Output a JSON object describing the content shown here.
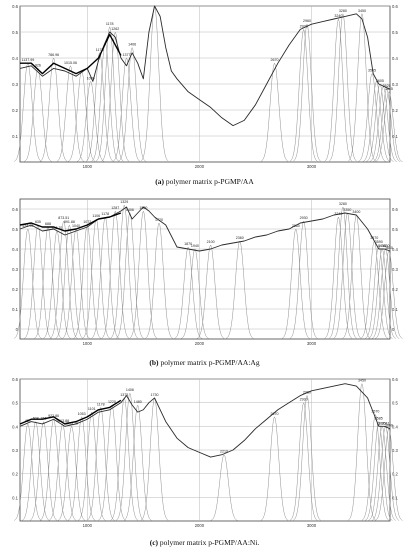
{
  "chart_data": [
    {
      "type": "line",
      "caption_label": "(a)",
      "caption_text": "polymer matrix p-PGMP/AA",
      "xlabel": "",
      "ylabel": "",
      "xlim": [
        400,
        3700
      ],
      "ylim": [
        0,
        0.6
      ],
      "x_ticks": [
        "1000",
        "2000",
        "3000"
      ],
      "y_ticks": [
        "0.1",
        "0.2",
        "0.3",
        "0.4",
        "0.5",
        "0.6"
      ],
      "y_right_ticks": [
        "0.6",
        "0.5",
        "0.4",
        "0.3",
        "0.2",
        "0.1"
      ],
      "grid": true,
      "colors": {
        "spectrum": "#2a2a2a",
        "fit": "#000000",
        "components": "#909090",
        "grid": "#b8b8b8"
      },
      "series": [
        {
          "kind": "spectrum",
          "x": [
            400,
            500,
            600,
            700,
            800,
            900,
            1000,
            1050,
            1100,
            1150,
            1200,
            1250,
            1300,
            1350,
            1400,
            1450,
            1500,
            1550,
            1600,
            1650,
            1700,
            1750,
            1800,
            1900,
            2000,
            2100,
            2200,
            2300,
            2400,
            2500,
            2600,
            2700,
            2800,
            2900,
            3000,
            3100,
            3200,
            3300,
            3400,
            3450,
            3500,
            3550,
            3600,
            3650,
            3700
          ],
          "y": [
            0.36,
            0.37,
            0.33,
            0.36,
            0.35,
            0.33,
            0.36,
            0.31,
            0.39,
            0.45,
            0.5,
            0.48,
            0.4,
            0.37,
            0.42,
            0.38,
            0.32,
            0.5,
            0.6,
            0.56,
            0.44,
            0.35,
            0.32,
            0.27,
            0.24,
            0.21,
            0.17,
            0.14,
            0.16,
            0.22,
            0.3,
            0.38,
            0.45,
            0.51,
            0.53,
            0.54,
            0.55,
            0.56,
            0.57,
            0.55,
            0.48,
            0.34,
            0.3,
            0.29,
            0.28
          ]
        },
        {
          "kind": "fit",
          "x": [
            400,
            500,
            600,
            700,
            800,
            900,
            1000,
            1100,
            1200,
            1300
          ],
          "y": [
            0.38,
            0.38,
            0.34,
            0.38,
            0.36,
            0.34,
            0.36,
            0.4,
            0.49,
            0.41
          ]
        }
      ],
      "peaks": [
        {
          "x": 470,
          "h": 0.38,
          "label": "1137.99"
        },
        {
          "x": 560,
          "h": 0.36,
          "label": "926"
        },
        {
          "x": 700,
          "h": 0.4,
          "label": "786.96"
        },
        {
          "x": 850,
          "h": 0.37,
          "label": "1015.06"
        },
        {
          "x": 950,
          "h": 0.35,
          "label": ""
        },
        {
          "x": 1030,
          "h": 0.31,
          "label": "1099"
        },
        {
          "x": 1110,
          "h": 0.42,
          "label": "1173"
        },
        {
          "x": 1160,
          "h": 0.46,
          "label": ""
        },
        {
          "x": 1200,
          "h": 0.52,
          "label": "1178"
        },
        {
          "x": 1250,
          "h": 0.5,
          "label": "1262"
        },
        {
          "x": 1350,
          "h": 0.4,
          "label": "1377"
        },
        {
          "x": 1400,
          "h": 0.44,
          "label": "1406"
        },
        {
          "x": 1600,
          "h": 0.6,
          "label": ""
        },
        {
          "x": 2670,
          "h": 0.38,
          "label": "2670"
        },
        {
          "x": 2930,
          "h": 0.51,
          "label": "2930"
        },
        {
          "x": 2960,
          "h": 0.53,
          "label": "2960"
        },
        {
          "x": 3240,
          "h": 0.55,
          "label": "3240"
        },
        {
          "x": 3280,
          "h": 0.57,
          "label": "3280"
        },
        {
          "x": 3450,
          "h": 0.57,
          "label": "3450"
        },
        {
          "x": 3540,
          "h": 0.34,
          "label": "3565"
        },
        {
          "x": 3580,
          "h": 0.31,
          "label": ""
        },
        {
          "x": 3610,
          "h": 0.3,
          "label": "3605"
        },
        {
          "x": 3640,
          "h": 0.29,
          "label": ""
        },
        {
          "x": 3670,
          "h": 0.28,
          "label": "3625"
        },
        {
          "x": 3690,
          "h": 0.27,
          "label": "3645"
        }
      ]
    },
    {
      "type": "line",
      "caption_label": "(b)",
      "caption_text": "polymer matrix p-PGMP/AA:Ag",
      "xlabel": "",
      "ylabel": "",
      "xlim": [
        400,
        3700
      ],
      "ylim": [
        -0.05,
        0.65
      ],
      "x_ticks": [
        "1000",
        "2000",
        "3000"
      ],
      "y_ticks": [
        "0",
        "0.1",
        "0.2",
        "0.3",
        "0.4",
        "0.5",
        "0.6"
      ],
      "y_right_ticks": [
        "0.6",
        "0.5",
        "0.4",
        "0.3",
        "0.2",
        "0.1",
        "0"
      ],
      "grid": true,
      "colors": {
        "spectrum": "#2a2a2a",
        "fit": "#000000",
        "components": "#909090",
        "grid": "#b8b8b8"
      },
      "series": [
        {
          "kind": "spectrum",
          "x": [
            400,
            500,
            600,
            700,
            800,
            900,
            1000,
            1100,
            1200,
            1300,
            1350,
            1400,
            1450,
            1500,
            1550,
            1600,
            1700,
            1800,
            1900,
            2000,
            2100,
            2200,
            2300,
            2400,
            2500,
            2600,
            2700,
            2800,
            2900,
            3000,
            3100,
            3200,
            3300,
            3400,
            3500,
            3550,
            3600,
            3650,
            3700
          ],
          "y": [
            0.5,
            0.52,
            0.49,
            0.5,
            0.47,
            0.49,
            0.51,
            0.55,
            0.56,
            0.59,
            0.61,
            0.55,
            0.58,
            0.61,
            0.59,
            0.56,
            0.52,
            0.41,
            0.4,
            0.39,
            0.4,
            0.42,
            0.43,
            0.44,
            0.46,
            0.47,
            0.49,
            0.5,
            0.53,
            0.54,
            0.55,
            0.57,
            0.58,
            0.57,
            0.5,
            0.45,
            0.4,
            0.4,
            0.39
          ]
        },
        {
          "kind": "fit",
          "x": [
            400,
            500,
            600,
            700,
            800,
            900,
            1000,
            1100,
            1200,
            1300
          ],
          "y": [
            0.52,
            0.53,
            0.51,
            0.51,
            0.49,
            0.5,
            0.52,
            0.55,
            0.56,
            0.58
          ]
        }
      ],
      "peaks": [
        {
          "x": 470,
          "h": 0.5,
          "label": "534.90"
        },
        {
          "x": 560,
          "h": 0.52,
          "label": "635"
        },
        {
          "x": 650,
          "h": 0.51,
          "label": "688"
        },
        {
          "x": 730,
          "h": 0.49,
          "label": "786.76"
        },
        {
          "x": 790,
          "h": 0.54,
          "label": "873.51"
        },
        {
          "x": 840,
          "h": 0.52,
          "label": "891.88"
        },
        {
          "x": 900,
          "h": 0.5,
          "label": "1040"
        },
        {
          "x": 1000,
          "h": 0.52,
          "label": "1072"
        },
        {
          "x": 1080,
          "h": 0.55,
          "label": "1106"
        },
        {
          "x": 1160,
          "h": 0.56,
          "label": "1178"
        },
        {
          "x": 1250,
          "h": 0.59,
          "label": "1287"
        },
        {
          "x": 1330,
          "h": 0.62,
          "label": "1329"
        },
        {
          "x": 1380,
          "h": 0.58,
          "label": "1406"
        },
        {
          "x": 1500,
          "h": 0.59,
          "label": "1500"
        },
        {
          "x": 1640,
          "h": 0.53,
          "label": "1720"
        },
        {
          "x": 1900,
          "h": 0.41,
          "label": "1870"
        },
        {
          "x": 1960,
          "h": 0.4,
          "label": "1940"
        },
        {
          "x": 2100,
          "h": 0.42,
          "label": "2100"
        },
        {
          "x": 2360,
          "h": 0.44,
          "label": "2360"
        },
        {
          "x": 2860,
          "h": 0.5,
          "label": "2860"
        },
        {
          "x": 2930,
          "h": 0.54,
          "label": "2930"
        },
        {
          "x": 3240,
          "h": 0.56,
          "label": "3240"
        },
        {
          "x": 3280,
          "h": 0.61,
          "label": "3280"
        },
        {
          "x": 3320,
          "h": 0.58,
          "label": "3350"
        },
        {
          "x": 3400,
          "h": 0.57,
          "label": "3400"
        },
        {
          "x": 3560,
          "h": 0.44,
          "label": "3570"
        },
        {
          "x": 3600,
          "h": 0.42,
          "label": "3590"
        },
        {
          "x": 3630,
          "h": 0.4,
          "label": "3610"
        },
        {
          "x": 3660,
          "h": 0.4,
          "label": "3630"
        },
        {
          "x": 3690,
          "h": 0.39,
          "label": "3640"
        }
      ]
    },
    {
      "type": "line",
      "caption_label": "(c)",
      "caption_text": "polymer matrix p-PGMP/AA:Ni.",
      "xlabel": "",
      "ylabel": "",
      "xlim": [
        400,
        3700
      ],
      "ylim": [
        0,
        0.6
      ],
      "x_ticks": [
        "1000",
        "2000",
        "3000"
      ],
      "y_ticks": [
        "0.1",
        "0.2",
        "0.3",
        "0.4",
        "0.5",
        "0.6"
      ],
      "y_right_ticks": [
        "0.6",
        "0.5",
        "0.4",
        "0.3",
        "0.2",
        "0.1"
      ],
      "grid": true,
      "colors": {
        "spectrum": "#2a2a2a",
        "fit": "#000000",
        "components": "#909090",
        "grid": "#b8b8b8"
      },
      "series": [
        {
          "kind": "spectrum",
          "x": [
            400,
            500,
            600,
            700,
            800,
            900,
            1000,
            1100,
            1200,
            1300,
            1350,
            1400,
            1450,
            1500,
            1550,
            1600,
            1700,
            1800,
            1900,
            2000,
            2100,
            2200,
            2300,
            2400,
            2500,
            2600,
            2700,
            2800,
            2900,
            3000,
            3100,
            3200,
            3300,
            3400,
            3500,
            3550,
            3600,
            3650,
            3700
          ],
          "y": [
            0.4,
            0.42,
            0.41,
            0.43,
            0.4,
            0.41,
            0.43,
            0.46,
            0.47,
            0.5,
            0.53,
            0.49,
            0.46,
            0.47,
            0.5,
            0.52,
            0.42,
            0.35,
            0.31,
            0.29,
            0.27,
            0.28,
            0.3,
            0.34,
            0.39,
            0.43,
            0.47,
            0.5,
            0.53,
            0.55,
            0.56,
            0.57,
            0.58,
            0.57,
            0.52,
            0.46,
            0.4,
            0.4,
            0.39
          ]
        },
        {
          "kind": "fit",
          "x": [
            400,
            500,
            600,
            700,
            800,
            900,
            1000,
            1100,
            1200,
            1300
          ],
          "y": [
            0.41,
            0.43,
            0.43,
            0.44,
            0.41,
            0.42,
            0.44,
            0.47,
            0.48,
            0.51
          ]
        }
      ],
      "peaks": [
        {
          "x": 470,
          "h": 0.41,
          "label": "457"
        },
        {
          "x": 540,
          "h": 0.42,
          "label": "608"
        },
        {
          "x": 610,
          "h": 0.42,
          "label": "766"
        },
        {
          "x": 700,
          "h": 0.43,
          "label": "922.86"
        },
        {
          "x": 780,
          "h": 0.41,
          "label": "1013.88"
        },
        {
          "x": 860,
          "h": 0.4,
          "label": "1015.30"
        },
        {
          "x": 950,
          "h": 0.44,
          "label": "1053"
        },
        {
          "x": 1040,
          "h": 0.46,
          "label": "1101"
        },
        {
          "x": 1120,
          "h": 0.48,
          "label": "1178"
        },
        {
          "x": 1220,
          "h": 0.49,
          "label": "1220"
        },
        {
          "x": 1330,
          "h": 0.52,
          "label": "1375"
        },
        {
          "x": 1380,
          "h": 0.54,
          "label": "1406"
        },
        {
          "x": 1450,
          "h": 0.49,
          "label": "1480"
        },
        {
          "x": 1600,
          "h": 0.52,
          "label": "1730"
        },
        {
          "x": 2220,
          "h": 0.28,
          "label": "2219"
        },
        {
          "x": 2670,
          "h": 0.44,
          "label": "2670"
        },
        {
          "x": 2930,
          "h": 0.5,
          "label": "2930"
        },
        {
          "x": 2960,
          "h": 0.53,
          "label": "2960"
        },
        {
          "x": 3450,
          "h": 0.58,
          "label": "3450"
        },
        {
          "x": 3570,
          "h": 0.45,
          "label": "3570"
        },
        {
          "x": 3600,
          "h": 0.42,
          "label": "3585"
        },
        {
          "x": 3630,
          "h": 0.4,
          "label": "3621"
        },
        {
          "x": 3660,
          "h": 0.4,
          "label": "3641"
        },
        {
          "x": 3690,
          "h": 0.39,
          "label": "3609"
        }
      ]
    }
  ]
}
